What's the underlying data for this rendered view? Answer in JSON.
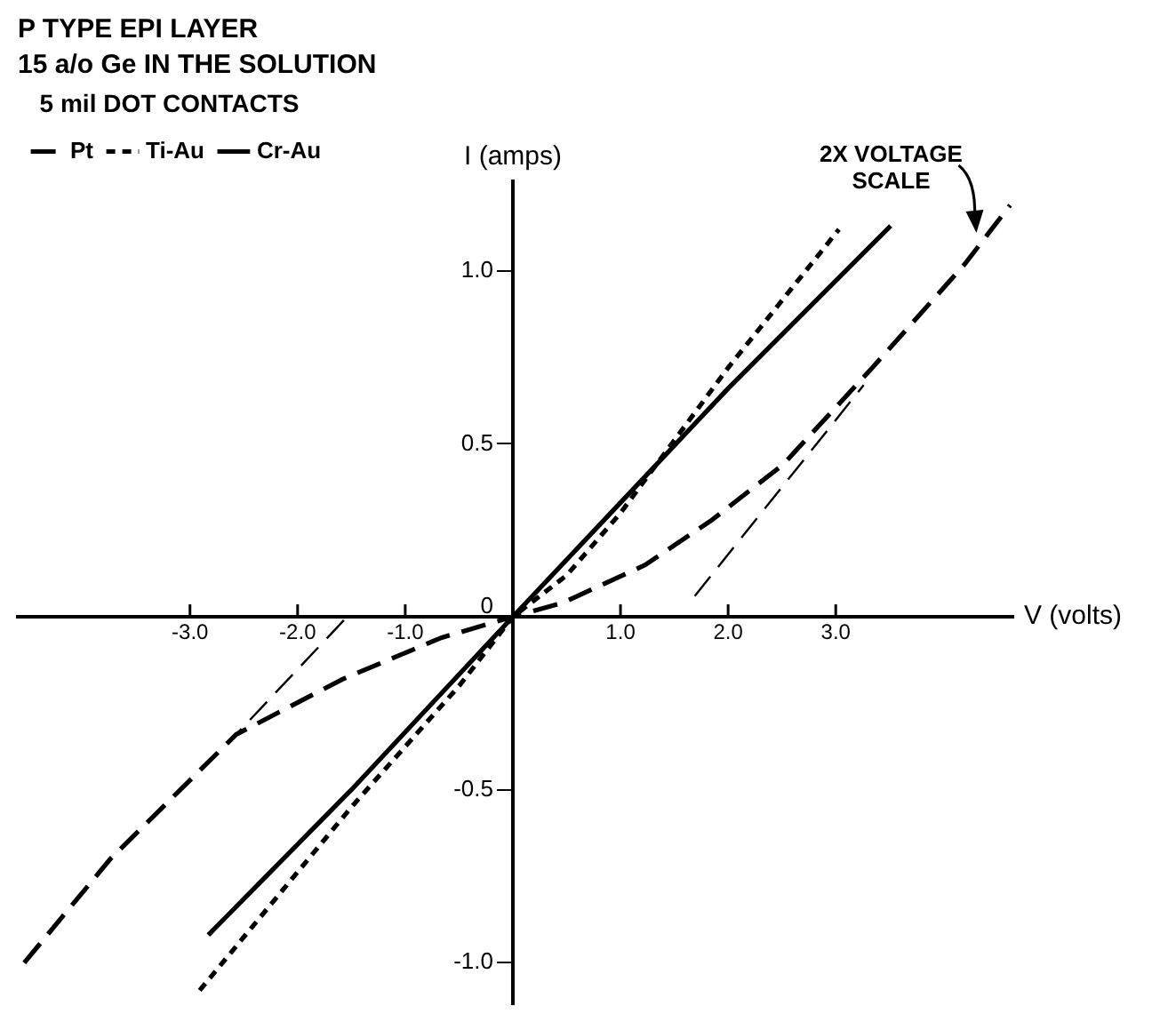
{
  "chart_data": {
    "type": "line",
    "title": "P TYPE EPI LAYER",
    "subtitle": "15 a/o Ge IN THE SOLUTION",
    "legend_title": "5 mil DOT CONTACTS",
    "xlabel": "V (volts)",
    "ylabel": "I (amps)",
    "xlim": [
      -4.6,
      4.65
    ],
    "ylim": [
      -1.12,
      1.26
    ],
    "xticks": [
      {
        "value": -3,
        "label": "-3.0"
      },
      {
        "value": -2,
        "label": "-2.0"
      },
      {
        "value": -1,
        "label": "-1.0"
      },
      {
        "value": 1,
        "label": "1.0"
      },
      {
        "value": 2,
        "label": "2.0"
      },
      {
        "value": 3,
        "label": "3.0"
      }
    ],
    "yticks": [
      {
        "value": -1,
        "label": "-1.0"
      },
      {
        "value": -0.5,
        "label": "-0.5"
      },
      0,
      {
        "value": 0.5,
        "label": "0.5"
      },
      {
        "value": 1,
        "label": "1.0"
      }
    ],
    "grid": false,
    "legend": "top left",
    "marker": "none",
    "series": [
      {
        "name": "Pt",
        "color": "#000000",
        "line_style": "dashed",
        "x": [
          -4.54,
          -3.74,
          -2.57,
          -1.58,
          -0.66,
          0,
          0.46,
          1.23,
          1.85,
          2.51,
          3.34,
          4.2,
          4.62
        ],
        "values": [
          -1.0,
          -0.7,
          -0.34,
          -0.18,
          -0.06,
          0,
          0.04,
          0.15,
          0.28,
          0.44,
          0.72,
          1.02,
          1.19
        ]
      },
      {
        "name": "Ti-Au",
        "color": "#000000",
        "line_style": "dotted",
        "x": [
          -2.91,
          -1.5,
          -0.5,
          0,
          0.5,
          1.0,
          2.0,
          3.03
        ],
        "values": [
          -1.08,
          -0.55,
          -0.2,
          0,
          0.12,
          0.3,
          0.72,
          1.12
        ]
      },
      {
        "name": "Cr-Au",
        "color": "#000000",
        "line_style": "solid",
        "x": [
          -2.83,
          -1.5,
          0,
          1.0,
          2.0,
          3.51
        ],
        "values": [
          -0.92,
          -0.5,
          0,
          0.33,
          0.66,
          1.13
        ]
      },
      {
        "color": "#000000",
        "line_style": "dashed",
        "x": [
          1.69,
          3.26
        ],
        "values": [
          0.06,
          0.67
        ]
      },
      {
        "color": "#000000",
        "line_style": "dashed",
        "x": [
          -1.57,
          -2.57
        ],
        "values": [
          -0.01,
          -0.34
        ]
      }
    ],
    "annotations": [
      {
        "text": "2X VOLTAGE SCALE",
        "x": 4.34,
        "y": 1.1
      }
    ]
  }
}
